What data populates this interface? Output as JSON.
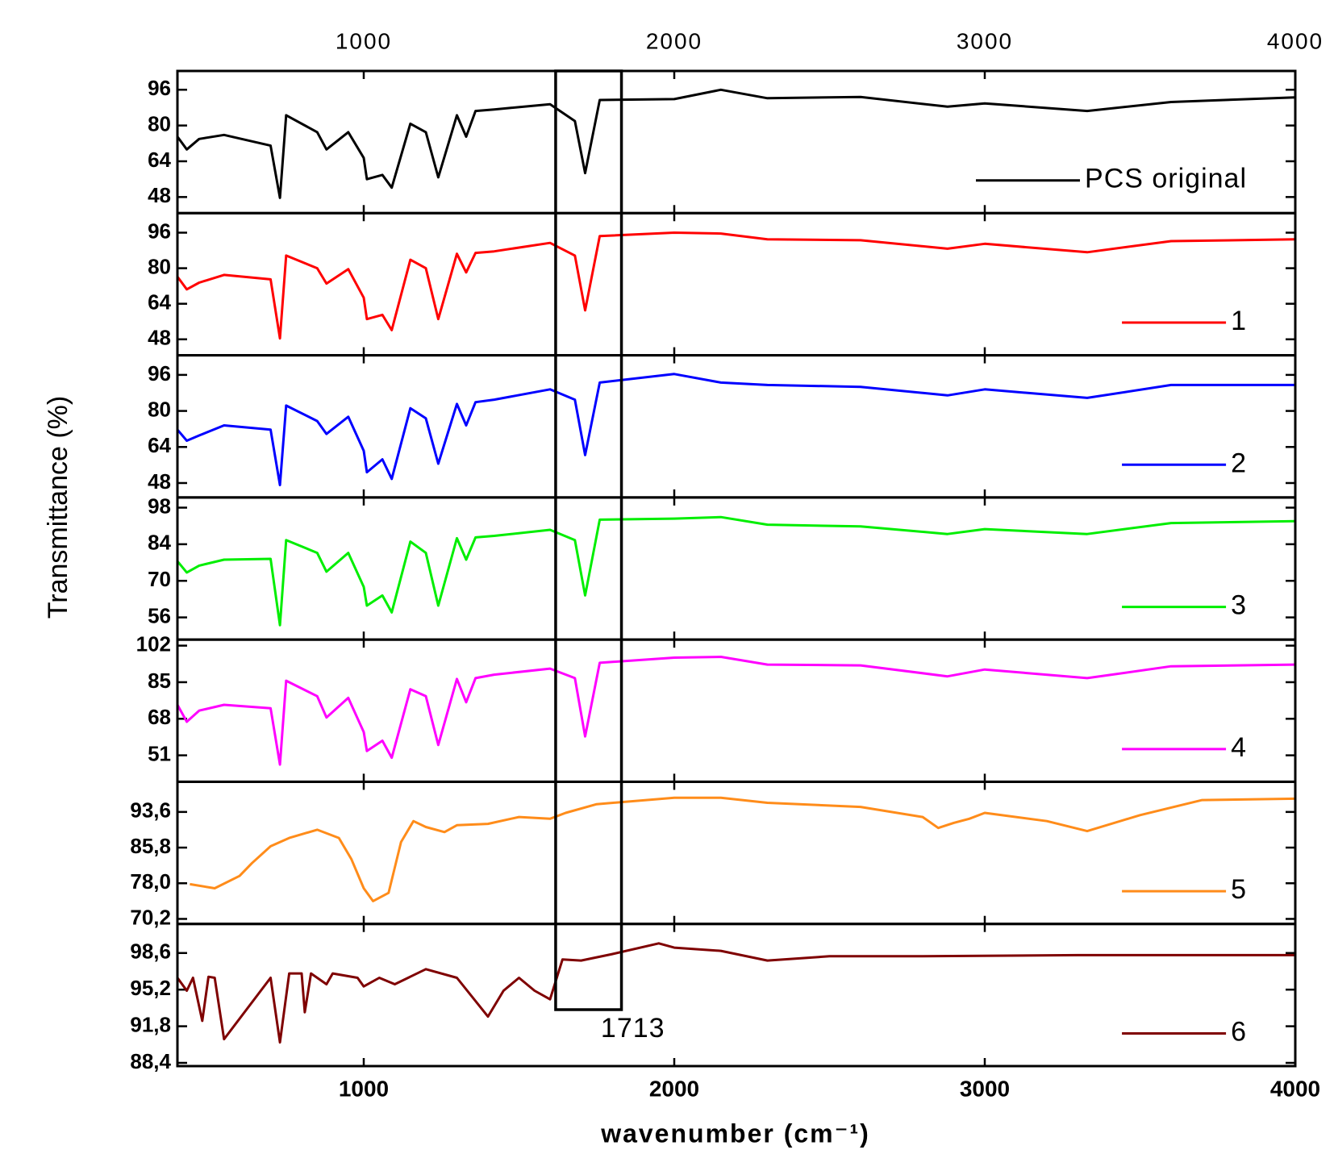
{
  "figure": {
    "xlabel": "wavenumber (cm⁻¹)",
    "ylabel": "Transmittance (%)",
    "annotation": {
      "label": "1713",
      "xlim": [
        1618,
        1830
      ]
    },
    "legend": "lower right"
  },
  "chart_data": [
    {
      "type": "line",
      "xlim": [
        400,
        4000
      ],
      "xticks": [
        1000,
        2000,
        3000,
        4000
      ],
      "ylim": [
        40.8,
        104.4
      ],
      "yticks": [
        48,
        64,
        80,
        96
      ],
      "x": [
        400,
        430,
        470,
        550,
        700,
        730,
        750,
        850,
        880,
        950,
        1000,
        1010,
        1060,
        1090,
        1150,
        1200,
        1240,
        1300,
        1330,
        1360,
        1420,
        1600,
        1680,
        1713,
        1760,
        2000,
        2150,
        2300,
        2600,
        2880,
        3000,
        3330,
        3600,
        4000
      ],
      "series": [
        {
          "name": "PCS original",
          "color": "#000000",
          "values": [
            75,
            69.3,
            74,
            75.8,
            71,
            47.6,
            84.6,
            77,
            69.3,
            77,
            65.5,
            56,
            57.9,
            52.2,
            80.8,
            77,
            56.8,
            84.6,
            75,
            86.5,
            87.2,
            89.5,
            82,
            58.7,
            91.4,
            91.8,
            96,
            92.2,
            92.8,
            88.4,
            89.9,
            86.5,
            90.5,
            92.6
          ]
        }
      ]
    },
    {
      "type": "line",
      "xlim": [
        400,
        4000
      ],
      "xticks": [
        1000,
        2000,
        3000,
        4000
      ],
      "ylim": [
        40.8,
        104.8
      ],
      "yticks": [
        48,
        64,
        80,
        96
      ],
      "x": [
        400,
        430,
        470,
        550,
        700,
        730,
        750,
        850,
        880,
        950,
        1000,
        1010,
        1060,
        1090,
        1150,
        1200,
        1240,
        1300,
        1330,
        1360,
        1420,
        1600,
        1680,
        1713,
        1760,
        2000,
        2150,
        2300,
        2600,
        2880,
        3000,
        3330,
        3600,
        4000
      ],
      "series": [
        {
          "name": "1",
          "color": "#ff0000",
          "values": [
            76.2,
            70.5,
            73.5,
            77,
            75,
            48.4,
            85.7,
            80,
            73.1,
            79.6,
            66.7,
            57.1,
            59,
            52.1,
            83.8,
            80,
            57.1,
            86.5,
            78.1,
            86.9,
            87.6,
            91.4,
            85.7,
            61,
            94.5,
            96,
            95.6,
            93,
            92.6,
            88.8,
            91,
            87.2,
            92.2,
            93
          ]
        }
      ]
    },
    {
      "type": "line",
      "xlim": [
        400,
        4000
      ],
      "xticks": [
        1000,
        2000,
        3000,
        4000
      ],
      "ylim": [
        41.6,
        104.7
      ],
      "yticks": [
        48,
        64,
        80,
        96
      ],
      "x": [
        400,
        430,
        470,
        550,
        700,
        730,
        750,
        850,
        880,
        950,
        1000,
        1010,
        1060,
        1090,
        1150,
        1200,
        1240,
        1300,
        1330,
        1360,
        1420,
        1600,
        1680,
        1713,
        1760,
        2000,
        2150,
        2300,
        2600,
        2880,
        3000,
        3330,
        3600,
        4000
      ],
      "series": [
        {
          "name": "2",
          "color": "#0000ff",
          "values": [
            71.7,
            66.8,
            69.1,
            73.6,
            71.7,
            47.1,
            82.4,
            75.5,
            69.8,
            77.4,
            62.3,
            52.8,
            58.5,
            49.8,
            81.2,
            76.7,
            56.6,
            83.1,
            73.6,
            83.9,
            85,
            89.6,
            85,
            60.4,
            92.6,
            96.4,
            92.6,
            91.5,
            90.7,
            86.9,
            89.6,
            85.8,
            91.5,
            91.5
          ]
        }
      ]
    },
    {
      "type": "line",
      "xlim": [
        400,
        4000
      ],
      "xticks": [
        1000,
        2000,
        3000,
        4000
      ],
      "ylim": [
        47.5,
        101.9
      ],
      "yticks": [
        56,
        70,
        84,
        98
      ],
      "x": [
        400,
        430,
        470,
        550,
        700,
        730,
        750,
        850,
        880,
        950,
        1000,
        1010,
        1060,
        1090,
        1150,
        1200,
        1240,
        1300,
        1330,
        1360,
        1420,
        1600,
        1680,
        1713,
        1760,
        2000,
        2150,
        2300,
        2600,
        2880,
        3000,
        3330,
        3600,
        4000
      ],
      "series": [
        {
          "name": "3",
          "color": "#00ee00",
          "values": [
            77.5,
            73.2,
            75.8,
            78.1,
            78.4,
            53,
            85.6,
            80.7,
            73.5,
            80.7,
            67.7,
            60.5,
            64.4,
            57.9,
            85,
            80.7,
            60.5,
            86.3,
            78.1,
            86.6,
            87.2,
            89.5,
            85.6,
            64.4,
            93.4,
            93.8,
            94.4,
            91.5,
            90.8,
            87.9,
            89.8,
            87.9,
            92.1,
            92.8
          ]
        }
      ]
    },
    {
      "type": "line",
      "xlim": [
        400,
        4000
      ],
      "xticks": [
        1000,
        2000,
        3000,
        4000
      ],
      "ylim": [
        38.7,
        104.8
      ],
      "yticks": [
        51,
        68,
        85,
        102
      ],
      "x": [
        400,
        430,
        470,
        550,
        700,
        730,
        750,
        850,
        880,
        950,
        1000,
        1010,
        1060,
        1090,
        1150,
        1200,
        1240,
        1300,
        1330,
        1360,
        1420,
        1600,
        1680,
        1713,
        1760,
        2000,
        2150,
        2300,
        2600,
        2880,
        3000,
        3330,
        3600,
        4000
      ],
      "series": [
        {
          "name": "4",
          "color": "#ff00ff",
          "values": [
            74.5,
            66.6,
            71.8,
            74.5,
            72.9,
            46.7,
            85.7,
            78.5,
            68.6,
            77.7,
            61.8,
            53,
            57.8,
            49.9,
            81.7,
            78.5,
            55.8,
            86.5,
            75.7,
            86.9,
            88.5,
            91.3,
            86.9,
            59.8,
            94,
            96.4,
            96.8,
            93.2,
            92.8,
            87.7,
            90.9,
            86.9,
            92.4,
            93.2
          ]
        }
      ]
    },
    {
      "type": "line",
      "xlim": [
        400,
        4000
      ],
      "xticks": [
        1000,
        2000,
        3000,
        4000
      ],
      "ylim": [
        69.1,
        100.2
      ],
      "yticks": [
        {
          "value": 70.2,
          "label": "70,2"
        },
        {
          "value": 78.0,
          "label": "78,0"
        },
        {
          "value": 85.8,
          "label": "85,8"
        },
        {
          "value": 93.6,
          "label": "93,6"
        }
      ],
      "x": [
        440,
        520,
        600,
        640,
        700,
        760,
        850,
        920,
        960,
        1000,
        1030,
        1080,
        1120,
        1160,
        1200,
        1260,
        1300,
        1400,
        1500,
        1600,
        1650,
        1750,
        2000,
        2150,
        2300,
        2600,
        2800,
        2850,
        2900,
        2950,
        3000,
        3200,
        3330,
        3500,
        3700,
        4000
      ],
      "series": [
        {
          "name": "5",
          "color": "#ff8c1a",
          "values": [
            77.8,
            76.9,
            79.6,
            82.4,
            86.1,
            87.9,
            89.7,
            87.9,
            83.3,
            76.9,
            74.1,
            75.9,
            87,
            91.6,
            90.3,
            89.2,
            90.7,
            91,
            92.5,
            92.1,
            93.4,
            95.3,
            96.7,
            96.7,
            95.6,
            94.7,
            92.5,
            90.1,
            91.2,
            92.1,
            93.4,
            91.6,
            89.4,
            92.9,
            96.2,
            96.5
          ]
        }
      ]
    },
    {
      "type": "line",
      "xlim": [
        400,
        4000
      ],
      "xticks": [
        1000,
        2000,
        3000,
        4000
      ],
      "ylim": [
        88.1,
        101.3
      ],
      "yticks": [
        {
          "value": 88.4,
          "label": "88,4"
        },
        {
          "value": 91.8,
          "label": "91,8"
        },
        {
          "value": 95.2,
          "label": "95,2"
        },
        {
          "value": 98.6,
          "label": "98,6"
        }
      ],
      "x": [
        400,
        430,
        450,
        480,
        500,
        520,
        550,
        700,
        730,
        760,
        800,
        810,
        830,
        880,
        900,
        980,
        1000,
        1050,
        1100,
        1200,
        1300,
        1400,
        1450,
        1500,
        1550,
        1600,
        1640,
        1700,
        1800,
        1950,
        2000,
        2150,
        2300,
        2500,
        2800,
        3300,
        3600,
        4000
      ],
      "series": [
        {
          "name": "6",
          "color": "#7f0000",
          "values": [
            96.3,
            95.1,
            96.3,
            92.3,
            96.4,
            96.3,
            90.6,
            96.3,
            90.3,
            96.7,
            96.7,
            93.1,
            96.7,
            95.7,
            96.7,
            96.3,
            95.5,
            96.3,
            95.7,
            97.1,
            96.3,
            92.7,
            95.1,
            96.3,
            95.1,
            94.3,
            98,
            97.9,
            98.5,
            99.5,
            99.1,
            98.8,
            97.9,
            98.3,
            98.3,
            98.4,
            98.4,
            98.4
          ]
        }
      ]
    }
  ]
}
